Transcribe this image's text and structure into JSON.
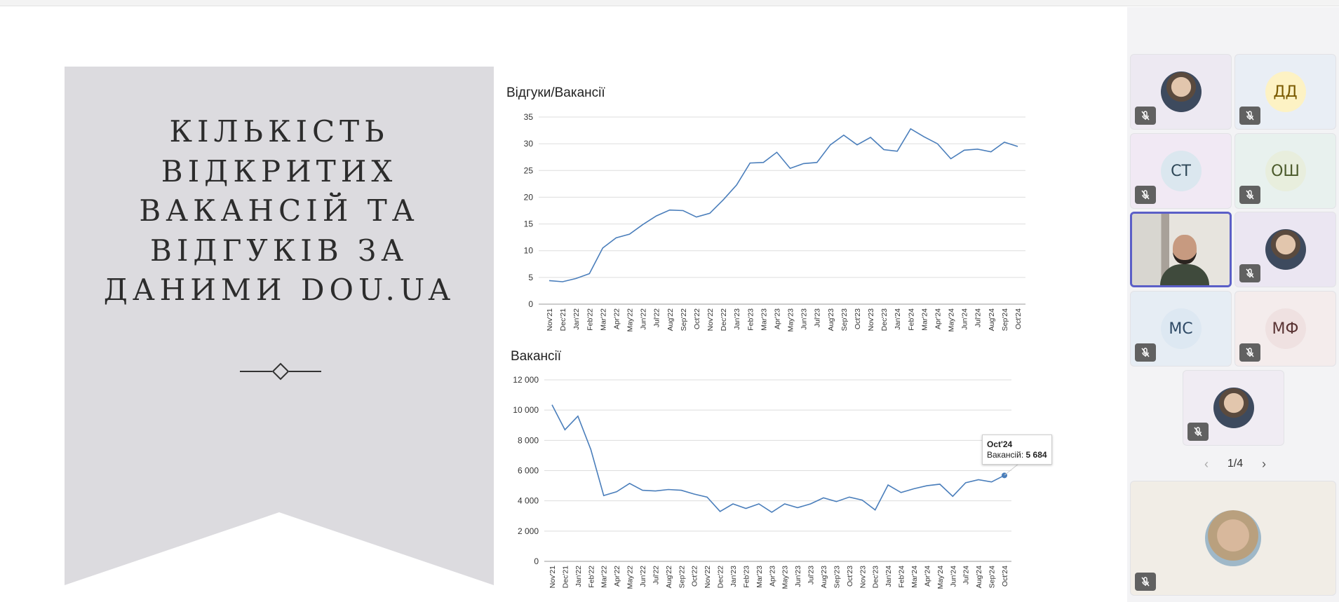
{
  "slide": {
    "title_lines": [
      "КІЛЬКІСТЬ",
      "ВІДКРИТИХ",
      "ВАКАНСІЙ ТА",
      "ВІДГУКІВ ЗА",
      "ДАНИМИ DOU.UA"
    ],
    "banner_color": "#dcdbdf"
  },
  "chart_data": [
    {
      "type": "line",
      "title": "Відгуки/Вакансії",
      "categories": [
        "Nov'21",
        "Dec'21",
        "Jan'22",
        "Feb'22",
        "Mar'22",
        "Apr'22",
        "May'22",
        "Jun'22",
        "Jul'22",
        "Aug'22",
        "Sep'22",
        "Oct'22",
        "Nov'22",
        "Dec'22",
        "Jan'23",
        "Feb'23",
        "Mar'23",
        "Apr'23",
        "May'23",
        "Jun'23",
        "Jul'23",
        "Aug'23",
        "Sep'23",
        "Oct'23",
        "Nov'23",
        "Dec'23",
        "Jan'24",
        "Feb'24",
        "Mar'24",
        "Apr'24",
        "May'24",
        "Jun'24",
        "Jul'24",
        "Aug'24",
        "Sep'24",
        "Oct'24"
      ],
      "values": [
        4.4,
        4.2,
        4.8,
        5.7,
        10.5,
        12.4,
        13.1,
        14.9,
        16.5,
        17.6,
        17.5,
        16.3,
        17.0,
        19.5,
        22.3,
        26.4,
        26.5,
        28.4,
        25.4,
        26.3,
        26.5,
        29.8,
        31.6,
        29.8,
        31.2,
        28.9,
        28.6,
        32.8,
        31.3,
        30.0,
        27.2,
        28.8,
        29.0,
        28.5,
        30.3,
        29.5
      ],
      "yticks": [
        "0",
        "5",
        "10",
        "15",
        "20",
        "25",
        "30",
        "35"
      ],
      "ylim": [
        0,
        35
      ],
      "color": "#4a7ebb"
    },
    {
      "type": "line",
      "title": "Вакансії",
      "categories": [
        "Nov'21",
        "Dec'21",
        "Jan'22",
        "Feb'22",
        "Mar'22",
        "Apr'22",
        "May'22",
        "Jun'22",
        "Jul'22",
        "Aug'22",
        "Sep'22",
        "Oct'22",
        "Nov'22",
        "Dec'22",
        "Jan'23",
        "Feb'23",
        "Mar'23",
        "Apr'23",
        "May'23",
        "Jun'23",
        "Jul'23",
        "Aug'23",
        "Sep'23",
        "Oct'23",
        "Nov'23",
        "Dec'23",
        "Jan'24",
        "Feb'24",
        "Mar'24",
        "Apr'24",
        "May'24",
        "Jun'24",
        "Jul'24",
        "Aug'24",
        "Sep'24",
        "Oct'24"
      ],
      "values": [
        10350,
        8700,
        9600,
        7400,
        4350,
        4600,
        5150,
        4700,
        4650,
        4750,
        4700,
        4450,
        4250,
        3300,
        3800,
        3500,
        3800,
        3250,
        3800,
        3550,
        3800,
        4200,
        3950,
        4250,
        4050,
        3400,
        5050,
        4550,
        4800,
        5000,
        5100,
        4300,
        5200,
        5400,
        5250,
        5684
      ],
      "yticks": [
        "0",
        "2 000",
        "4 000",
        "6 000",
        "8 000",
        "10 000",
        "12 000"
      ],
      "ylim": [
        0,
        12000
      ],
      "color": "#4a7ebb",
      "tooltip": {
        "label": "Oct'24",
        "series": "Вакансій:",
        "value": "5 684"
      }
    }
  ],
  "participants": [
    {
      "kind": "photo",
      "name": "participant-1",
      "bg": "#ede9f2"
    },
    {
      "kind": "initials",
      "initials": "ДД",
      "bg": "#e9eef5",
      "avatar_bg": "#fdf2c4",
      "color": "#7a5a00"
    },
    {
      "kind": "initials",
      "initials": "СТ",
      "bg": "#f1e9f4",
      "avatar_bg": "#dbe7ef",
      "color": "#2f4858"
    },
    {
      "kind": "initials",
      "initials": "ОШ",
      "bg": "#e8f1ee",
      "avatar_bg": "#e8eedd",
      "color": "#4b5a2b"
    },
    {
      "kind": "video",
      "name": "participant-active",
      "bg": "#cfc9c0"
    },
    {
      "kind": "photo",
      "name": "participant-6",
      "bg": "#ebe6f2"
    },
    {
      "kind": "initials",
      "initials": "МС",
      "bg": "#e6edf4",
      "avatar_bg": "#dde8f2",
      "color": "#2f4a66"
    },
    {
      "kind": "initials",
      "initials": "МФ",
      "bg": "#f4ecec",
      "avatar_bg": "#efe1e1",
      "color": "#5a3434"
    },
    {
      "kind": "photo",
      "name": "participant-9",
      "bg": "#f0ecf3"
    }
  ],
  "pager": {
    "label": "1/4",
    "prev": "‹",
    "next": "›"
  },
  "self_view": {
    "bg": "#f1ede6"
  }
}
